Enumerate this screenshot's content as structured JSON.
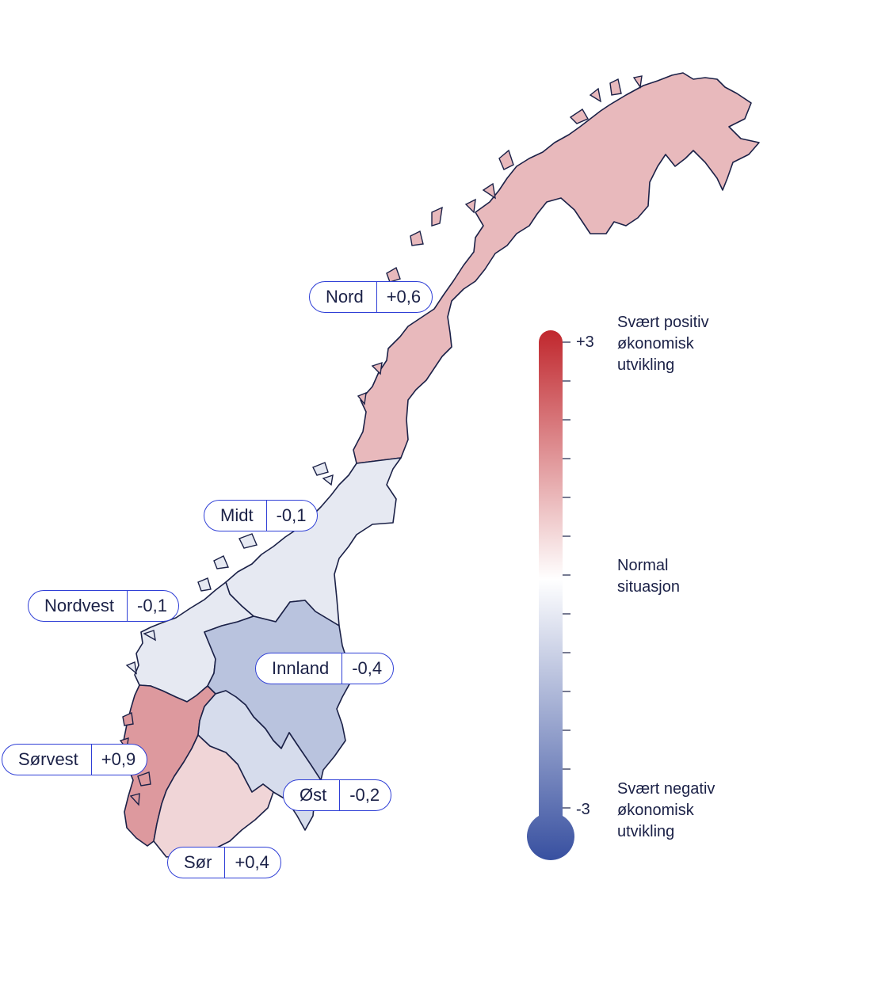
{
  "colors": {
    "outline": "#1b2147",
    "label_border": "#2f3fd6",
    "scale_top": "#c0272d",
    "scale_mid": "#ffffff",
    "scale_bottom": "#3850a0"
  },
  "regions": [
    {
      "id": "nord",
      "name": "Nord",
      "value": "+0,6",
      "score": 0.6,
      "fill": "#e8b9bc"
    },
    {
      "id": "midt",
      "name": "Midt",
      "value": "-0,1",
      "score": -0.1,
      "fill": "#e6e9f2"
    },
    {
      "id": "nordvest",
      "name": "Nordvest",
      "value": "-0,1",
      "score": -0.1,
      "fill": "#e6e9f2"
    },
    {
      "id": "innland",
      "name": "Innland",
      "value": "-0,4",
      "score": -0.4,
      "fill": "#b9c3de"
    },
    {
      "id": "sorvest",
      "name": "Sørvest",
      "value": "+0,9",
      "score": 0.9,
      "fill": "#dd999e"
    },
    {
      "id": "ost",
      "name": "Øst",
      "value": "-0,2",
      "score": -0.2,
      "fill": "#d6dcec"
    },
    {
      "id": "sor",
      "name": "Sør",
      "value": "+0,4",
      "score": 0.4,
      "fill": "#f0d5d7"
    }
  ],
  "scale": {
    "max_label": "+3",
    "min_label": "-3",
    "top_text": [
      "Svært positiv",
      "økonomisk",
      "utvikling"
    ],
    "mid_text": [
      "Normal",
      "situasjon"
    ],
    "bottom_text": [
      "Svært negativ",
      "økonomisk",
      "utvikling"
    ]
  }
}
